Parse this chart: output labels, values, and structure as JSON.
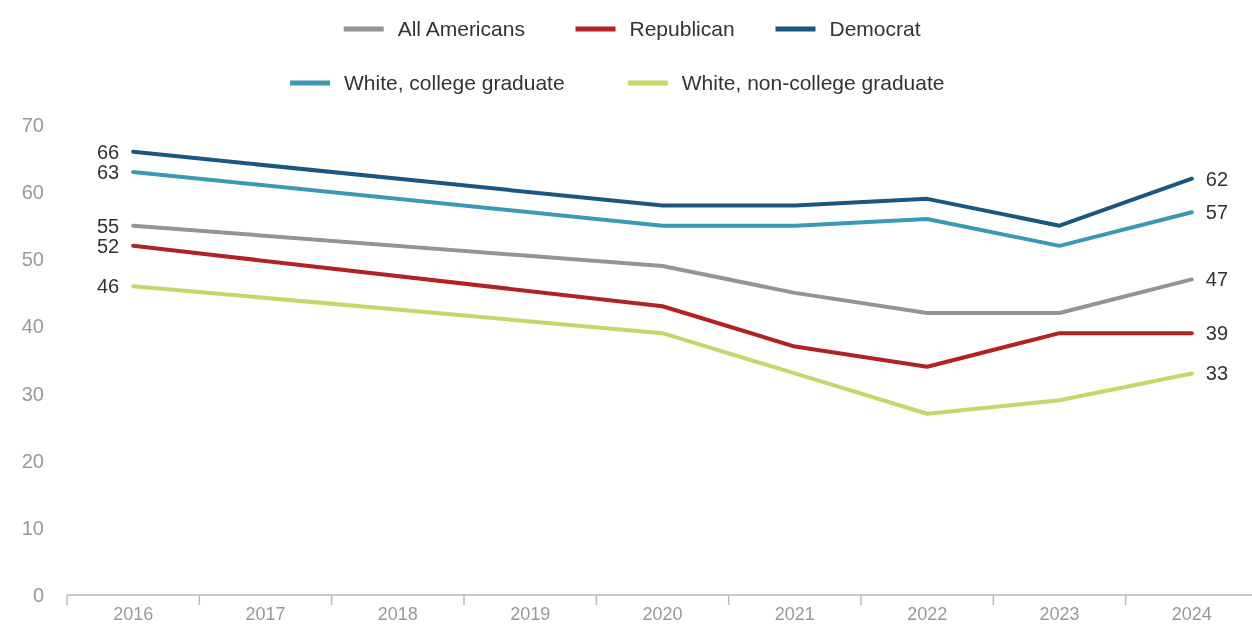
{
  "chart_data": {
    "type": "line",
    "legend": "top",
    "marker": "none",
    "line_style": "solid",
    "grid": false,
    "x": [
      2016,
      2020,
      2021,
      2022,
      2023,
      2024
    ],
    "xlim": [
      2015.5,
      2024.5
    ],
    "xticks": [
      2016,
      2017,
      2018,
      2019,
      2020,
      2021,
      2022,
      2023,
      2024
    ],
    "ylim": [
      0,
      70
    ],
    "yticks": [
      0,
      10,
      20,
      30,
      40,
      50,
      60,
      70
    ],
    "series": [
      {
        "name": "All Americans",
        "color": "#949494",
        "values": [
          55,
          49,
          45,
          42,
          42,
          47
        ],
        "value_labels": [
          "55",
          null,
          null,
          null,
          null,
          "47"
        ]
      },
      {
        "name": "Republican",
        "color": "#b22222",
        "values": [
          52,
          43,
          37,
          34,
          39,
          39
        ],
        "value_labels": [
          "52",
          null,
          null,
          null,
          null,
          "39"
        ]
      },
      {
        "name": "Democrat",
        "color": "#1b5681",
        "values": [
          66,
          58,
          58,
          59,
          55,
          62
        ],
        "value_labels": [
          "66",
          null,
          null,
          null,
          null,
          "62"
        ]
      },
      {
        "name": "White, college graduate",
        "color": "#3a9ab5",
        "values": [
          63,
          55,
          55,
          56,
          52,
          57
        ],
        "value_labels": [
          "63",
          null,
          null,
          null,
          null,
          "57"
        ]
      },
      {
        "name": "White, non-college graduate",
        "color": "#c3d867",
        "values": [
          46,
          39,
          33,
          27,
          29,
          33
        ],
        "value_labels": [
          "46",
          null,
          null,
          null,
          null,
          "33"
        ]
      }
    ]
  }
}
